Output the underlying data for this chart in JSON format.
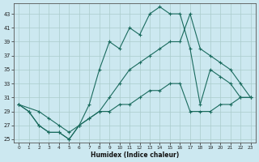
{
  "title": "",
  "xlabel": "Humidex (Indice chaleur)",
  "bg_color": "#cce8f0",
  "line_color": "#1a6b5e",
  "grid_color": "#aacccc",
  "xlim": [
    -0.5,
    23.5
  ],
  "ylim": [
    24.5,
    44.5
  ],
  "xticks": [
    0,
    1,
    2,
    3,
    4,
    5,
    6,
    7,
    8,
    9,
    10,
    11,
    12,
    13,
    14,
    15,
    16,
    17,
    18,
    19,
    20,
    21,
    22,
    23
  ],
  "yticks": [
    25,
    27,
    29,
    31,
    33,
    35,
    37,
    39,
    41,
    43
  ],
  "line1_x": [
    0,
    1,
    2,
    3,
    4,
    5,
    6,
    7,
    8,
    9,
    10,
    11,
    12,
    13,
    14,
    15,
    16,
    17,
    18,
    19,
    20,
    21,
    22,
    23
  ],
  "line1_y": [
    30,
    29,
    27,
    26,
    26,
    25,
    27,
    30,
    35,
    39,
    38,
    41,
    40,
    43,
    44,
    43,
    43,
    38,
    30,
    35,
    34,
    33,
    31,
    31
  ],
  "line2_x": [
    0,
    1,
    2,
    3,
    4,
    5,
    6,
    7,
    8,
    9,
    10,
    11,
    12,
    13,
    14,
    15,
    16,
    17,
    18,
    19,
    20,
    21,
    22,
    23
  ],
  "line2_y": [
    30,
    29,
    27,
    26,
    26,
    25,
    27,
    28,
    29,
    29,
    30,
    30,
    31,
    32,
    32,
    33,
    33,
    29,
    29,
    29,
    30,
    30,
    31,
    31
  ],
  "line3_x": [
    0,
    2,
    3,
    4,
    5,
    6,
    7,
    8,
    9,
    10,
    11,
    12,
    13,
    14,
    15,
    16,
    17,
    18,
    19,
    20,
    21,
    22,
    23
  ],
  "line3_y": [
    30,
    29,
    28,
    27,
    26,
    27,
    28,
    29,
    31,
    33,
    35,
    36,
    37,
    38,
    39,
    39,
    43,
    38,
    37,
    36,
    35,
    33,
    31
  ]
}
